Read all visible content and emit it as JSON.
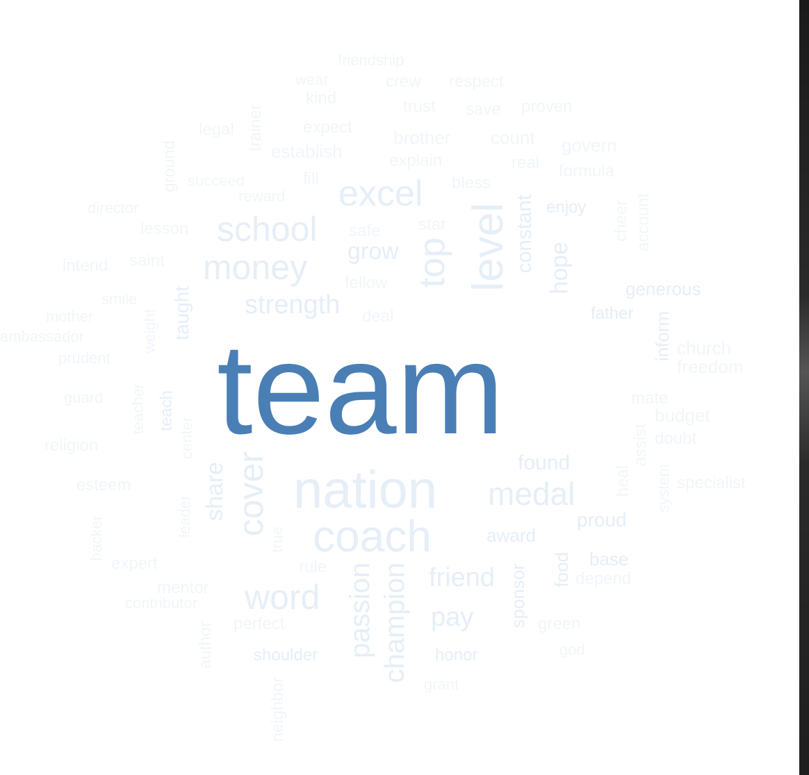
{
  "primary_color": "#4a7fb5",
  "secondary_color": "#e6eef7",
  "tertiary_color": "#f1f5fa",
  "words": [
    {
      "text": "team",
      "weight": 100
    },
    {
      "text": "nation",
      "weight": 40
    },
    {
      "text": "coach",
      "weight": 38
    },
    {
      "text": "excel",
      "weight": 30
    },
    {
      "text": "school",
      "weight": 30
    },
    {
      "text": "money",
      "weight": 30
    },
    {
      "text": "level",
      "weight": 30
    },
    {
      "text": "top",
      "weight": 28
    },
    {
      "text": "cover",
      "weight": 26
    },
    {
      "text": "medal",
      "weight": 22
    },
    {
      "text": "word",
      "weight": 24
    },
    {
      "text": "strength",
      "weight": 20
    },
    {
      "text": "passion",
      "weight": 20
    },
    {
      "text": "champion",
      "weight": 20
    },
    {
      "text": "friend",
      "weight": 18
    },
    {
      "text": "pay",
      "weight": 18
    },
    {
      "text": "share",
      "weight": 17
    },
    {
      "text": "hope",
      "weight": 17
    },
    {
      "text": "constant",
      "weight": 16
    },
    {
      "text": "grow",
      "weight": 16
    },
    {
      "text": "found",
      "weight": 15
    },
    {
      "text": "taught",
      "weight": 14
    },
    {
      "text": "proud",
      "weight": 14
    },
    {
      "text": "generous",
      "weight": 13
    },
    {
      "text": "inform",
      "weight": 13
    },
    {
      "text": "sponsor",
      "weight": 13
    },
    {
      "text": "food",
      "weight": 13
    },
    {
      "text": "award",
      "weight": 12
    },
    {
      "text": "base",
      "weight": 12
    },
    {
      "text": "teach",
      "weight": 12
    },
    {
      "text": "honor",
      "weight": 12
    },
    {
      "text": "shoulder",
      "weight": 12
    },
    {
      "text": "enjoy",
      "weight": 12
    },
    {
      "text": "father",
      "weight": 12
    },
    {
      "text": "brother",
      "weight": 12
    },
    {
      "text": "count",
      "weight": 12
    },
    {
      "text": "govern",
      "weight": 12
    },
    {
      "text": "establish",
      "weight": 12
    },
    {
      "text": "explain",
      "weight": 12
    },
    {
      "text": "real",
      "weight": 12
    },
    {
      "text": "formula",
      "weight": 12
    },
    {
      "text": "succeed",
      "weight": 12
    },
    {
      "text": "reward",
      "weight": 12
    },
    {
      "text": "trainer",
      "weight": 12
    },
    {
      "text": "expect",
      "weight": 12
    },
    {
      "text": "legal",
      "weight": 12
    },
    {
      "text": "trust",
      "weight": 12
    },
    {
      "text": "save",
      "weight": 12
    },
    {
      "text": "proven",
      "weight": 12
    },
    {
      "text": "crew",
      "weight": 12
    },
    {
      "text": "respect",
      "weight": 12
    },
    {
      "text": "wear",
      "weight": 12
    },
    {
      "text": "kind",
      "weight": 12
    },
    {
      "text": "friendship",
      "weight": 12
    },
    {
      "text": "lesson",
      "weight": 12
    },
    {
      "text": "director",
      "weight": 12
    },
    {
      "text": "ground",
      "weight": 12
    },
    {
      "text": "fill",
      "weight": 12
    },
    {
      "text": "bless",
      "weight": 12
    },
    {
      "text": "star",
      "weight": 12
    },
    {
      "text": "safe",
      "weight": 12
    },
    {
      "text": "fellow",
      "weight": 12
    },
    {
      "text": "deal",
      "weight": 12
    },
    {
      "text": "intend",
      "weight": 12
    },
    {
      "text": "saint",
      "weight": 12
    },
    {
      "text": "smile",
      "weight": 12
    },
    {
      "text": "mother",
      "weight": 12
    },
    {
      "text": "ambassador",
      "weight": 12
    },
    {
      "text": "prudent",
      "weight": 12
    },
    {
      "text": "weight",
      "weight": 12
    },
    {
      "text": "guard",
      "weight": 12
    },
    {
      "text": "teacher",
      "weight": 12
    },
    {
      "text": "religion",
      "weight": 12
    },
    {
      "text": "center",
      "weight": 12
    },
    {
      "text": "esteem",
      "weight": 12
    },
    {
      "text": "leader",
      "weight": 12
    },
    {
      "text": "backer",
      "weight": 12
    },
    {
      "text": "expert",
      "weight": 12
    },
    {
      "text": "mentor",
      "weight": 12
    },
    {
      "text": "contributor",
      "weight": 12
    },
    {
      "text": "true",
      "weight": 12
    },
    {
      "text": "rule",
      "weight": 12
    },
    {
      "text": "perfect",
      "weight": 12
    },
    {
      "text": "author",
      "weight": 12
    },
    {
      "text": "neighbor",
      "weight": 12
    },
    {
      "text": "grant",
      "weight": 12
    },
    {
      "text": "green",
      "weight": 12
    },
    {
      "text": "god",
      "weight": 12
    },
    {
      "text": "depend",
      "weight": 12
    },
    {
      "text": "heal",
      "weight": 12
    },
    {
      "text": "assist",
      "weight": 12
    },
    {
      "text": "system",
      "weight": 12
    },
    {
      "text": "specialist",
      "weight": 12
    },
    {
      "text": "mate",
      "weight": 12
    },
    {
      "text": "budget",
      "weight": 12
    },
    {
      "text": "doubt",
      "weight": 12
    },
    {
      "text": "church",
      "weight": 12
    },
    {
      "text": "freedom",
      "weight": 12
    },
    {
      "text": "cheer",
      "weight": 12
    },
    {
      "text": "account",
      "weight": 12
    }
  ]
}
